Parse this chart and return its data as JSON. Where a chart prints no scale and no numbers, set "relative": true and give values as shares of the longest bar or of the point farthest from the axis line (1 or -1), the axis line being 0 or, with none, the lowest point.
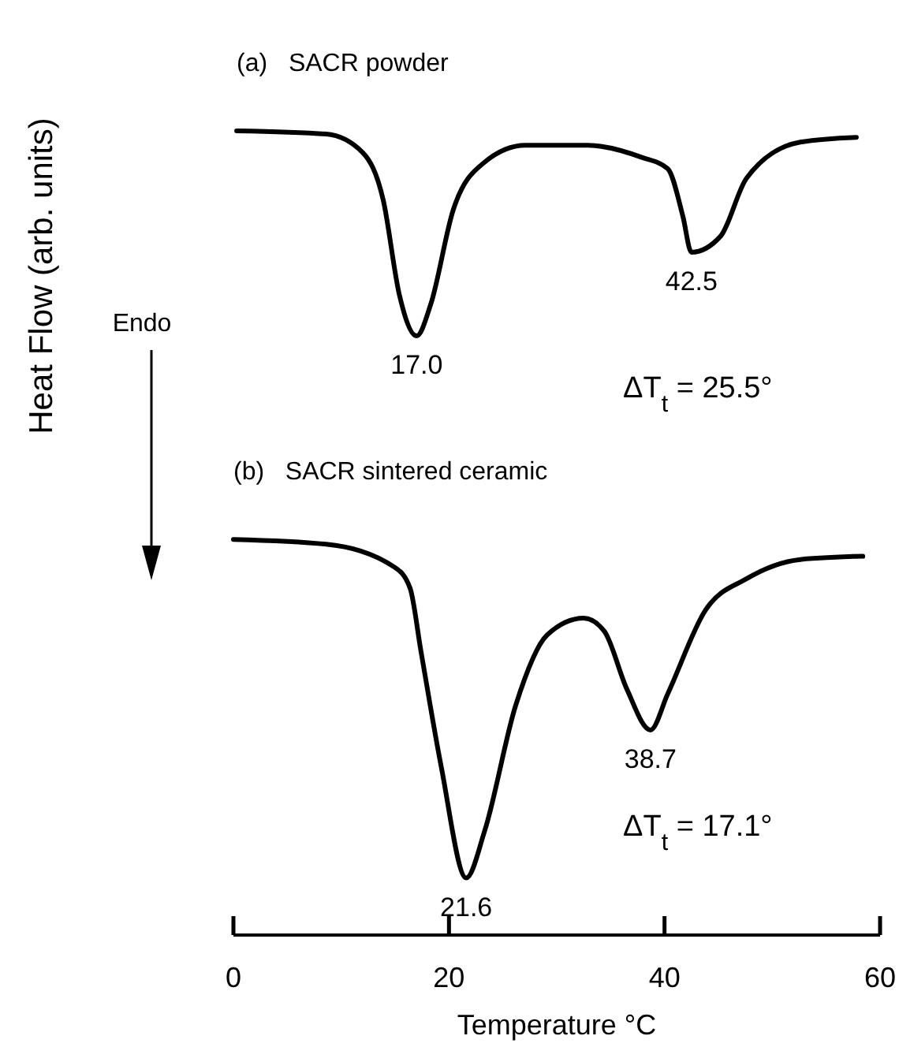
{
  "chart_data": {
    "type": "line",
    "relative": true,
    "xlabel": "Temperature °C",
    "ylabel": "Heat Flow (arb. units)",
    "tick_labels": "x",
    "xlim": [
      0,
      60
    ],
    "xticks": [
      0,
      20,
      40,
      60
    ],
    "series": [
      {
        "name": "(a)   SACR powder",
        "color": "#000000",
        "x": [
          0.3,
          8.6,
          12,
          13.9,
          15.4,
          17.0,
          18.3,
          20.4,
          23.3,
          27.1,
          32.9,
          37.9,
          40.3,
          41.7,
          42.5,
          45.2,
          47.6,
          52.6,
          57.8
        ],
        "values": [
          1.0,
          0.996,
          0.973,
          0.914,
          0.796,
          0.745,
          0.784,
          0.902,
          0.961,
          0.982,
          0.982,
          0.967,
          0.953,
          0.894,
          0.849,
          0.869,
          0.941,
          0.986,
          0.992
        ]
      },
      {
        "name": "(b)   SACR sintered ceramic",
        "color": "#000000",
        "x": [
          0,
          8.6,
          15,
          16.4,
          17.4,
          19.3,
          21.6,
          23.3,
          26.2,
          29.1,
          32.5,
          34.4,
          36.5,
          38.7,
          40.3,
          43.8,
          47.6,
          52.6,
          58.4
        ],
        "values": [
          0.492,
          0.486,
          0.457,
          0.431,
          0.353,
          0.208,
          0.071,
          0.129,
          0.286,
          0.373,
          0.394,
          0.378,
          0.306,
          0.255,
          0.3,
          0.404,
          0.443,
          0.467,
          0.471
        ]
      }
    ],
    "annotations": [
      {
        "text": "17.0",
        "x": 17.0,
        "y": 0.745
      },
      {
        "text": "42.5",
        "x": 42.5,
        "y": 0.849
      },
      {
        "text": "21.6",
        "x": 21.6,
        "y": 0.071
      },
      {
        "text": "38.7",
        "x": 38.7,
        "y": 0.255
      },
      "Endo",
      "ΔT$_{t}$ = 25.5°",
      "ΔT$_{t}$ = 17.1°"
    ]
  }
}
